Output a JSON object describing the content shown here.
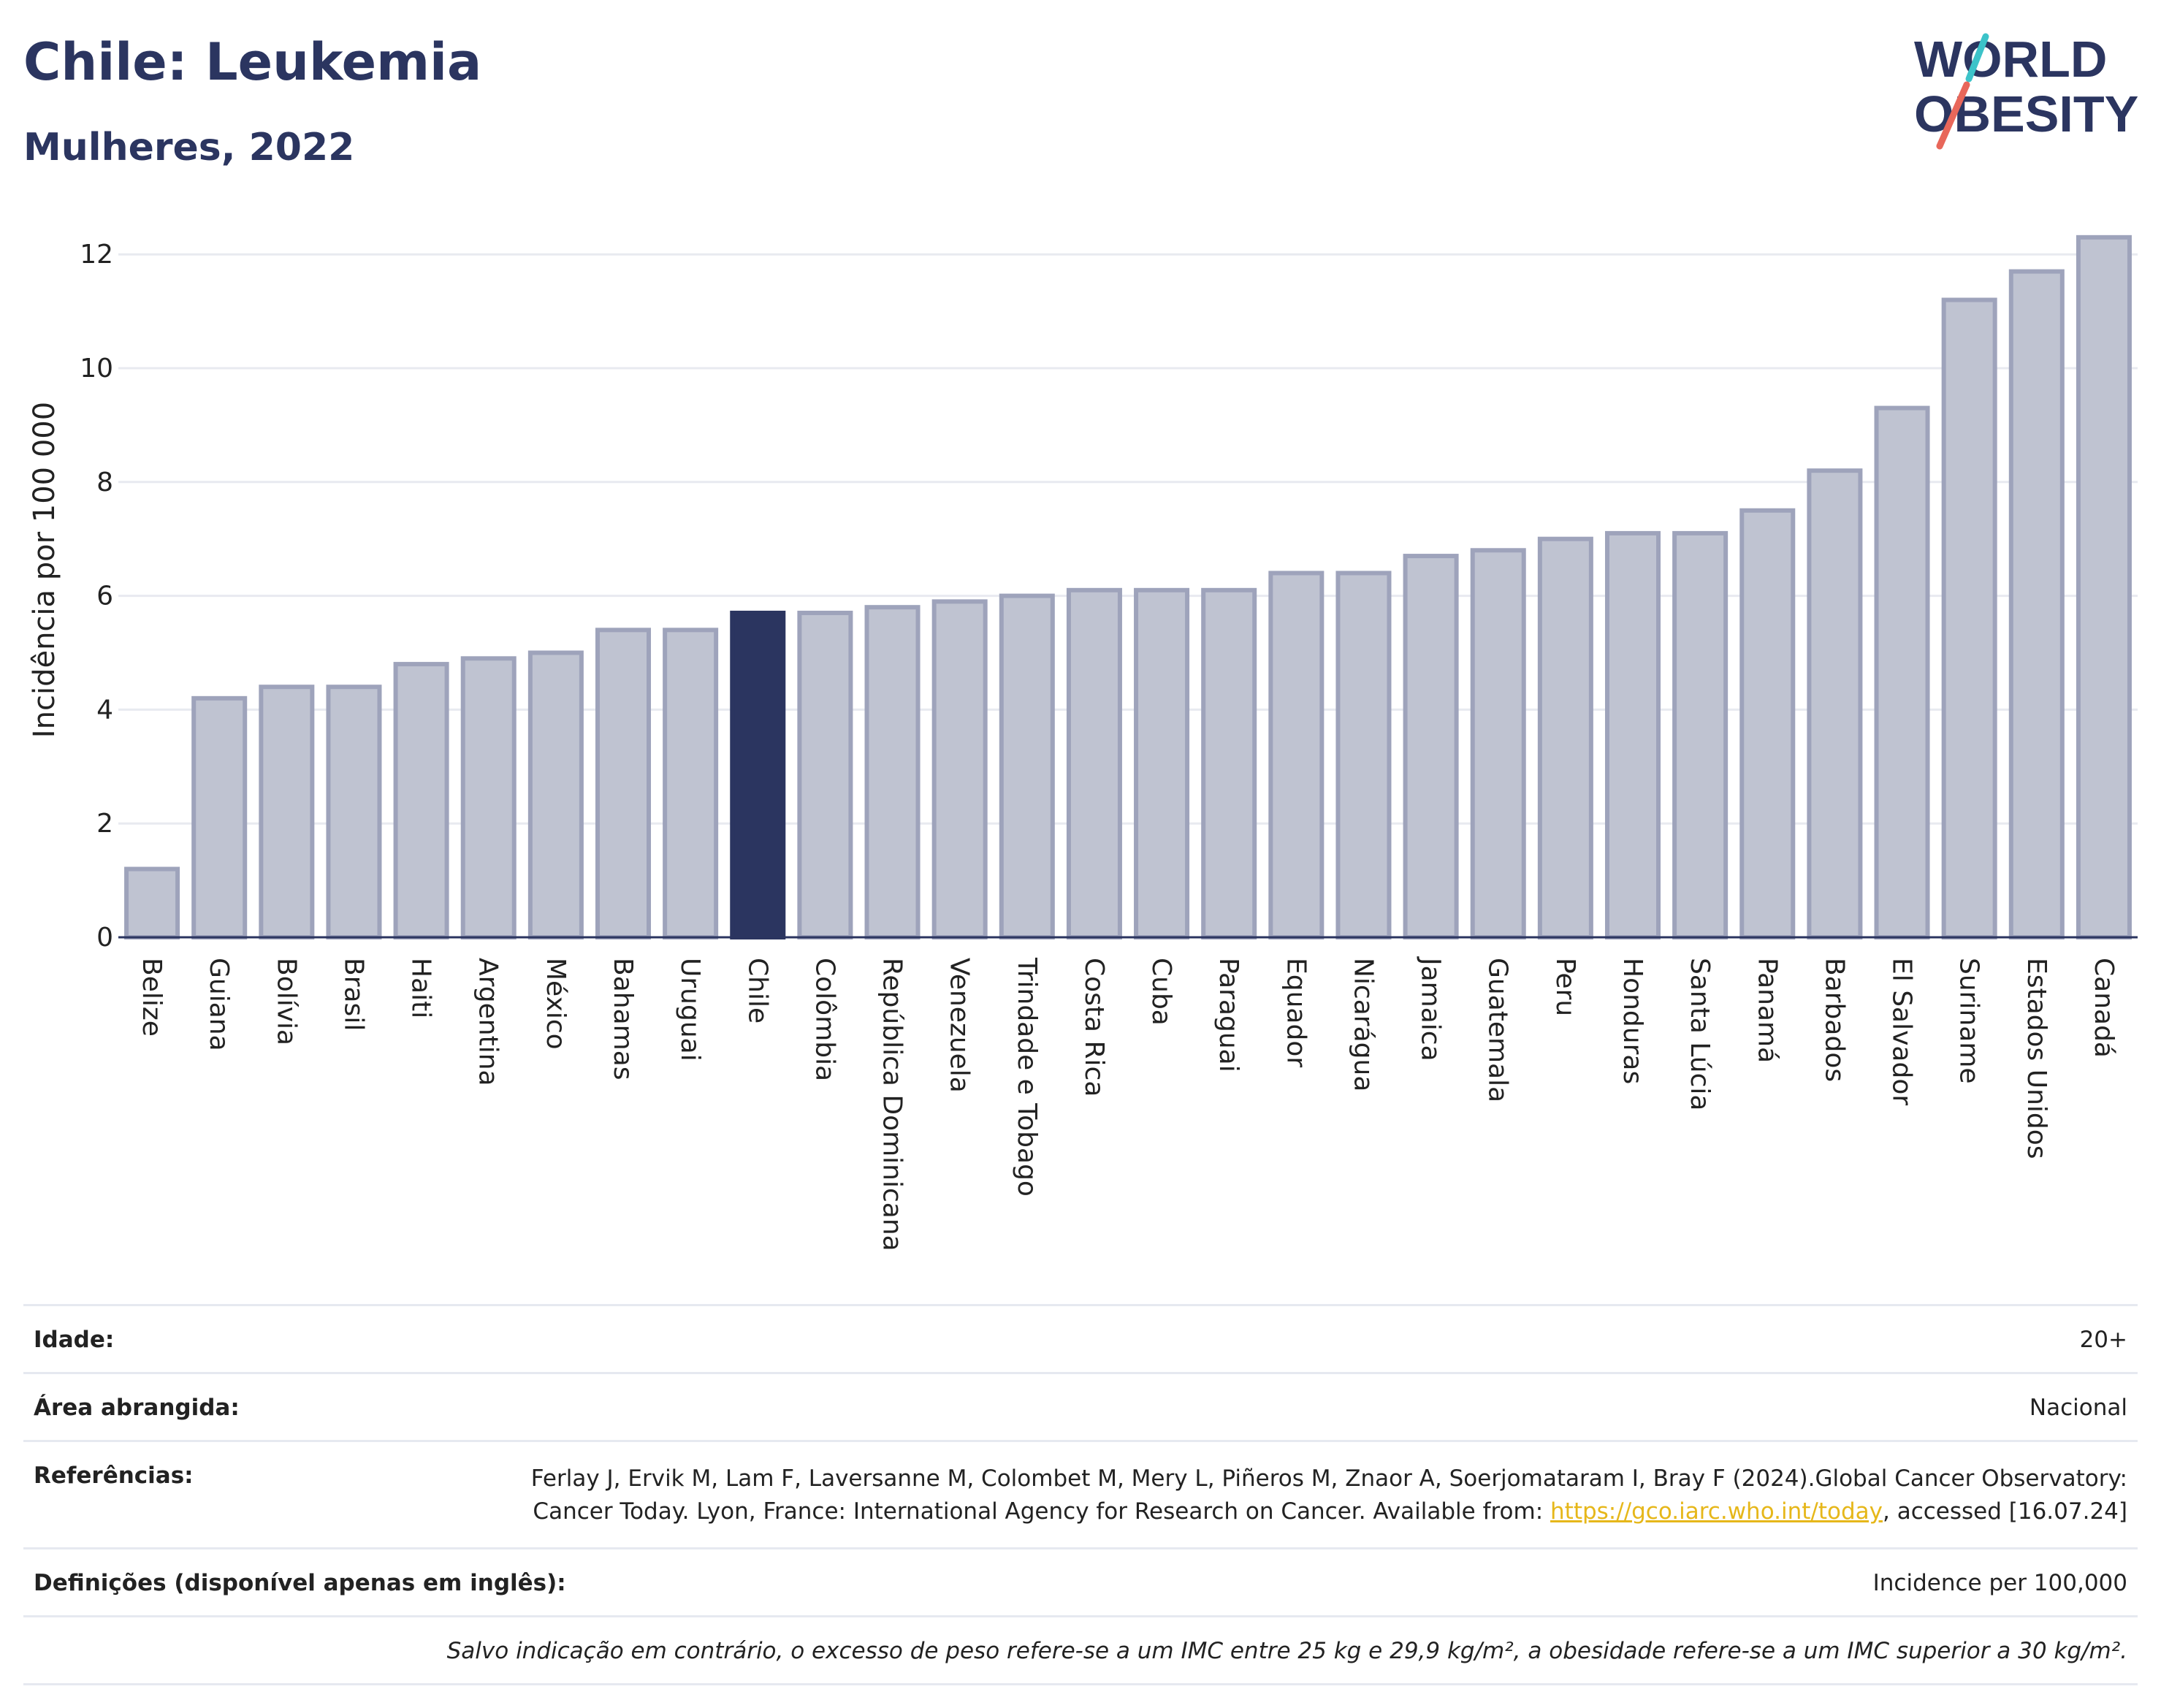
{
  "header": {
    "title": "Chile: Leukemia",
    "subtitle": "Mulheres, 2022"
  },
  "logo": {
    "line1": "WORLD",
    "line2": "OBESITY",
    "text_color": "#2b3560",
    "slash_colors": [
      "#3cc3c9",
      "#e8675a"
    ]
  },
  "colors": {
    "highlight_bar": "#2b3560",
    "other_bar_fill": "#bfc3d1",
    "other_bar_stroke": "#9ea3bb",
    "grid": "#e8eaf0"
  },
  "chart_data": {
    "type": "bar",
    "ylabel": "Incidência por 100 000",
    "ylim": [
      0,
      12.6
    ],
    "yticks": [
      0,
      2,
      4,
      6,
      8,
      10,
      12
    ],
    "grid": true,
    "highlight": "Chile",
    "categories": [
      "Belize",
      "Guiana",
      "Bolívia",
      "Brasil",
      "Haiti",
      "Argentina",
      "México",
      "Bahamas",
      "Uruguai",
      "Chile",
      "Colômbia",
      "República Dominicana",
      "Venezuela",
      "Trindade e Tobago",
      "Costa Rica",
      "Cuba",
      "Paraguai",
      "Equador",
      "Nicarágua",
      "Jamaica",
      "Guatemala",
      "Peru",
      "Honduras",
      "Santa Lúcia",
      "Panamá",
      "Barbados",
      "El Salvador",
      "Suriname",
      "Estados Unidos",
      "Canadá"
    ],
    "values": [
      1.2,
      4.2,
      4.4,
      4.4,
      4.8,
      4.9,
      5.0,
      5.4,
      5.4,
      5.7,
      5.7,
      5.8,
      5.9,
      6.0,
      6.1,
      6.1,
      6.1,
      6.4,
      6.4,
      6.7,
      6.8,
      7.0,
      7.1,
      7.1,
      7.5,
      8.2,
      9.3,
      11.2,
      11.7,
      12.3
    ]
  },
  "info": {
    "age_label": "Idade:",
    "age_value": "20+",
    "area_label": "Área abrangida:",
    "area_value": "Nacional",
    "ref_label": "Referências:",
    "ref_text_1": "Ferlay J, Ervik M, Lam F, Laversanne M, Colombet M, Mery L, Piñeros M, Znaor A, Soerjomataram I, Bray F (2024).Global Cancer Observatory: Cancer Today. Lyon, France: International Agency for Research on Cancer. Available from: ",
    "ref_link": "https://gco.iarc.who.int/today",
    "ref_text_2": ", accessed [16.07.24]",
    "def_label": "Definições (disponível apenas em inglês):",
    "def_value": "Incidence per 100,000",
    "note": "Salvo indicação em contrário, o excesso de peso refere-se a um IMC entre 25 kg e 29,9 kg/m², a obesidade refere-se a um IMC superior a 30 kg/m²."
  }
}
